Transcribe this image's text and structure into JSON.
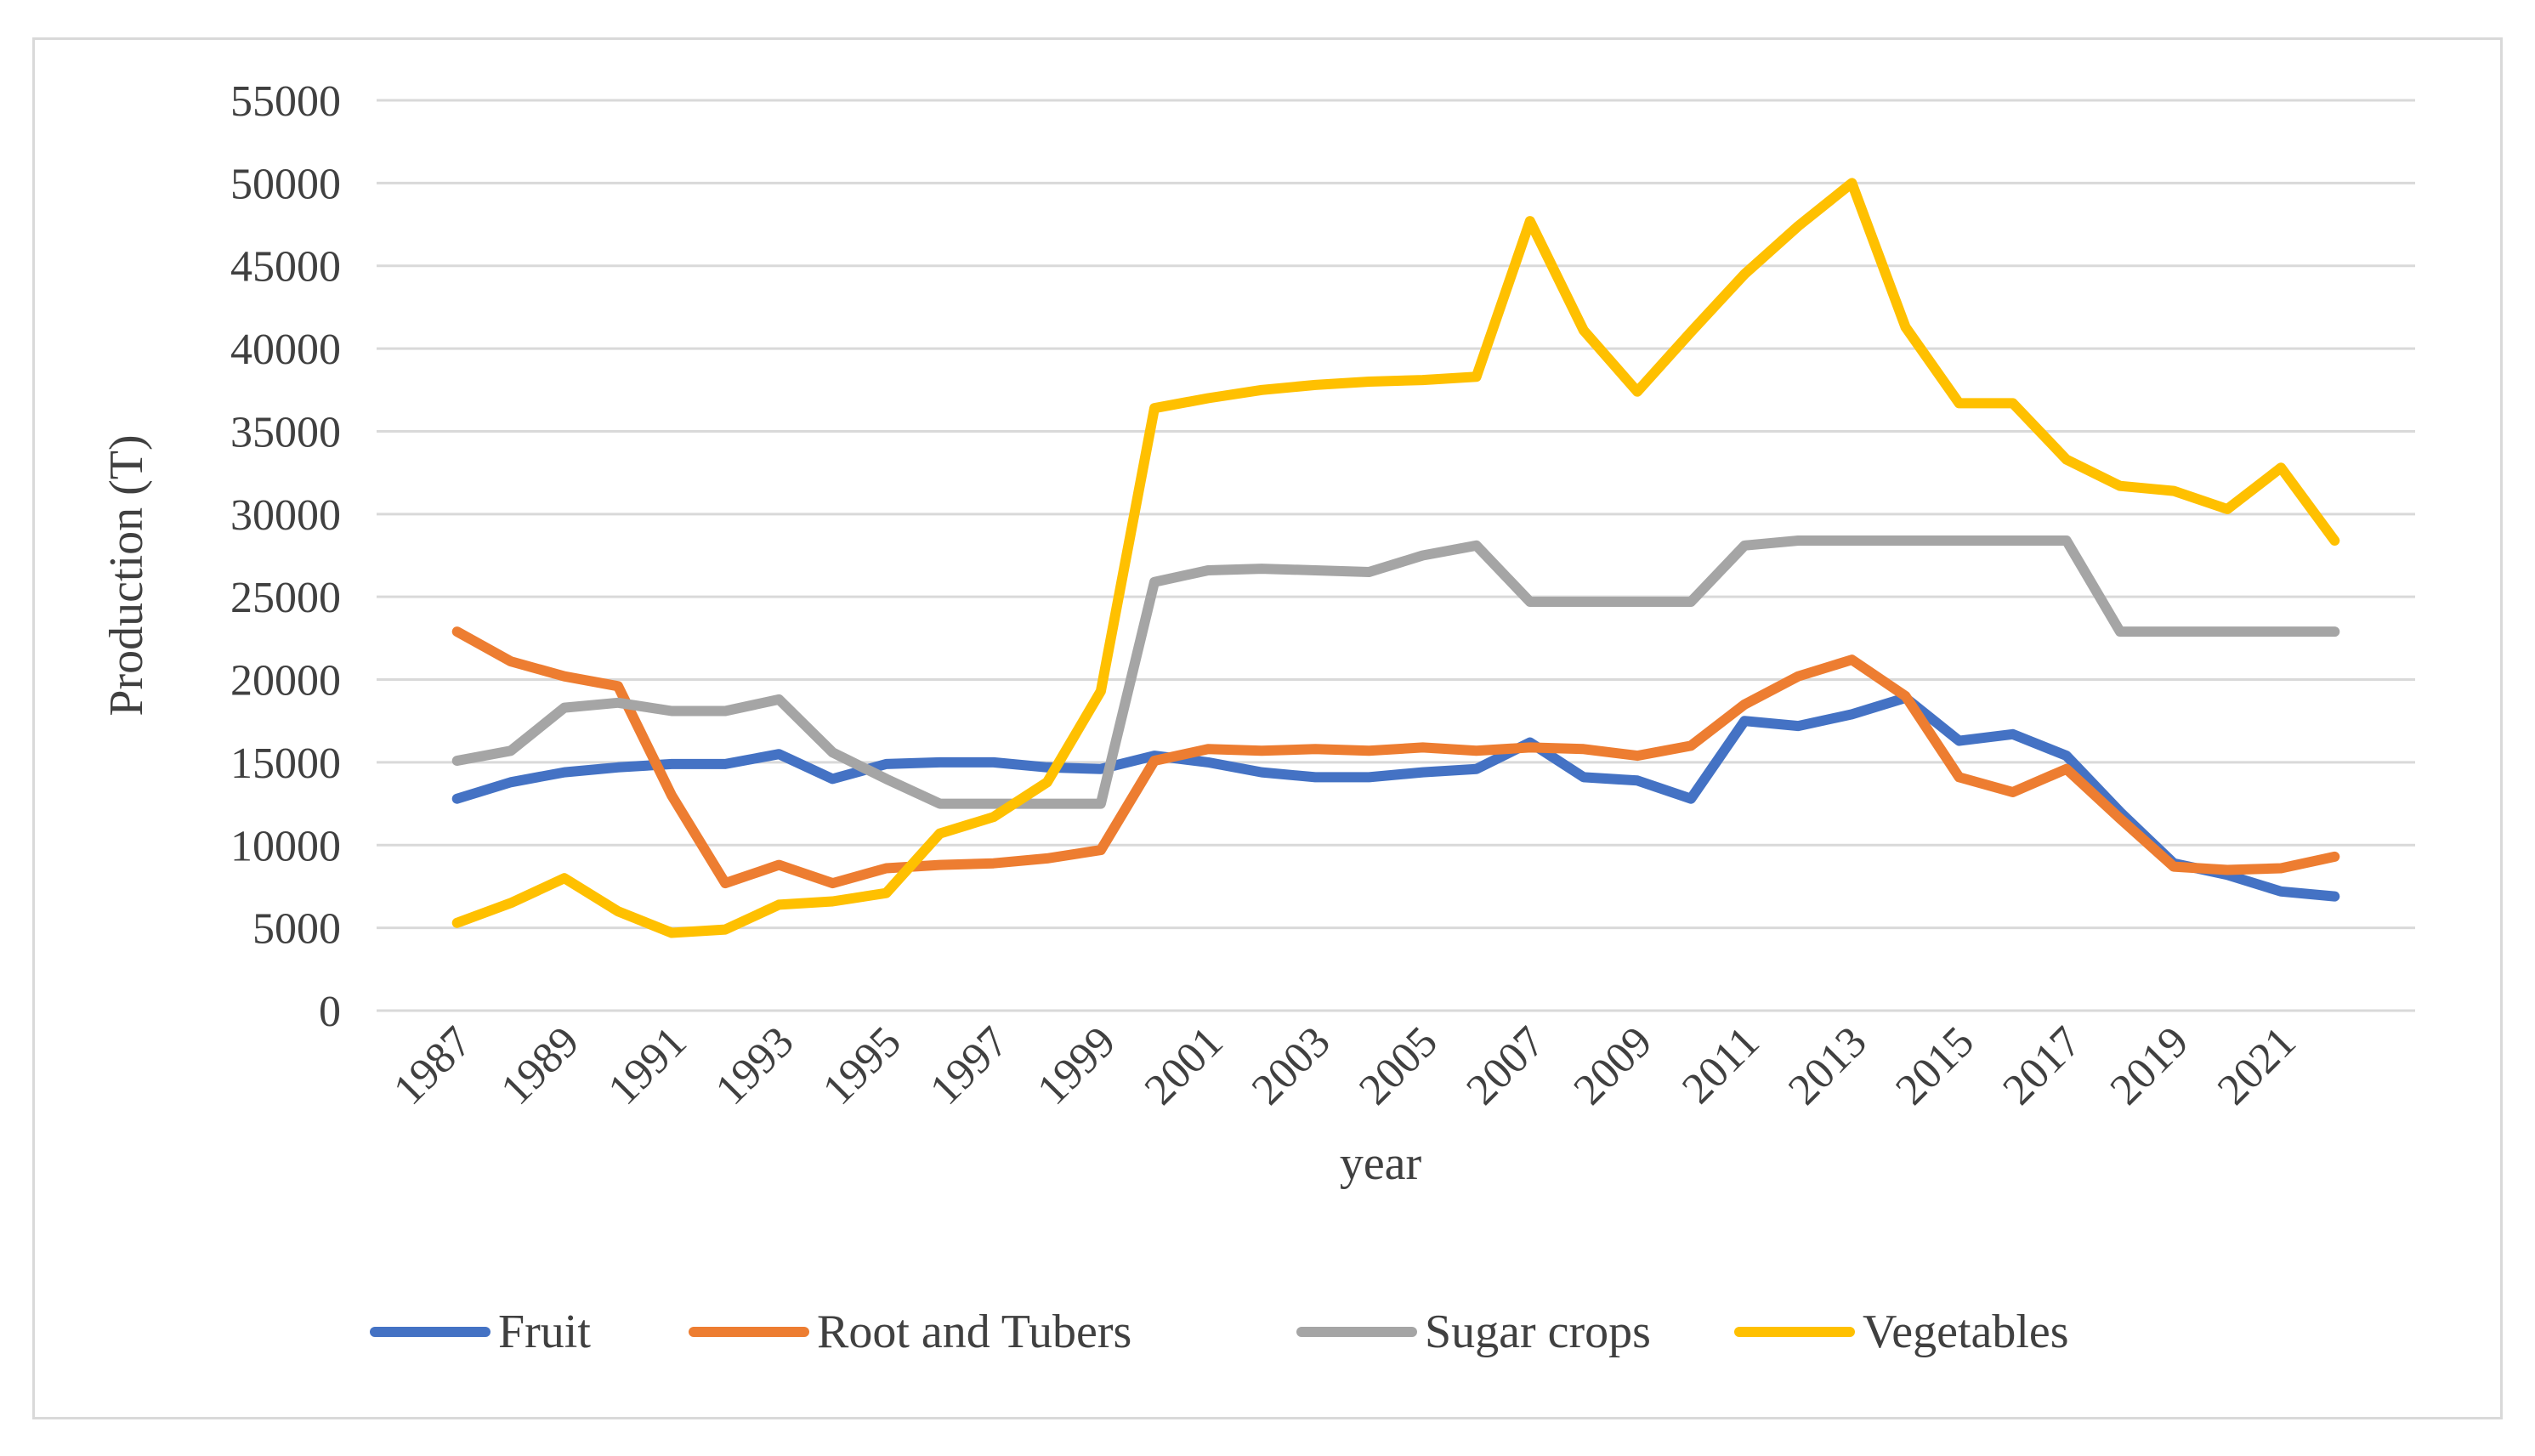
{
  "chart_data": {
    "type": "line",
    "title": "",
    "xlabel": "year",
    "ylabel": "Production (T)",
    "ylim": [
      0,
      55000
    ],
    "y_ticks": [
      "0",
      "5000",
      "10000",
      "15000",
      "20000",
      "25000",
      "30000",
      "35000",
      "40000",
      "45000",
      "50000",
      "55000"
    ],
    "x_tick_labels": [
      "1987",
      "1989",
      "1991",
      "1993",
      "1995",
      "1997",
      "1999",
      "2001",
      "2003",
      "2005",
      "2007",
      "2009",
      "2011",
      "2013",
      "2015",
      "2017",
      "2019",
      "2021"
    ],
    "legend_position": "bottom",
    "grid": true,
    "x": [
      1987,
      1988,
      1989,
      1990,
      1991,
      1992,
      1993,
      1994,
      1995,
      1996,
      1997,
      1998,
      1999,
      2000,
      2001,
      2002,
      2003,
      2004,
      2005,
      2006,
      2007,
      2008,
      2009,
      2010,
      2011,
      2012,
      2013,
      2014,
      2015,
      2016,
      2017,
      2018,
      2019,
      2020,
      2021,
      2022
    ],
    "series": [
      {
        "name": "Fruit",
        "color": "#4472c4",
        "values": [
          12800,
          13800,
          14400,
          14700,
          14900,
          14900,
          15500,
          14000,
          14900,
          15000,
          15000,
          14700,
          14600,
          15400,
          15000,
          14400,
          14100,
          14100,
          14400,
          14600,
          16200,
          14100,
          13900,
          12800,
          17500,
          17200,
          17900,
          18900,
          16300,
          16700,
          15400,
          12000,
          8900,
          8200,
          7200,
          6900
        ]
      },
      {
        "name": "Root and Tubers",
        "color": "#ed7d31",
        "values": [
          22900,
          21100,
          20200,
          19600,
          13000,
          7700,
          8800,
          7700,
          8600,
          8800,
          8900,
          9200,
          9700,
          15100,
          15800,
          15700,
          15800,
          15700,
          15900,
          15700,
          15900,
          15800,
          15400,
          16000,
          18500,
          20200,
          21200,
          19000,
          14100,
          13200,
          14600,
          11600,
          8700,
          8500,
          8600,
          9300
        ]
      },
      {
        "name": "Sugar crops",
        "color": "#a5a5a5",
        "values": [
          15100,
          15700,
          18300,
          18600,
          18100,
          18100,
          18800,
          15600,
          14000,
          12500,
          12500,
          12500,
          12500,
          25900,
          26600,
          26700,
          26600,
          26500,
          27500,
          28100,
          24700,
          24700,
          24700,
          24700,
          28100,
          28400,
          28400,
          28400,
          28400,
          28400,
          28400,
          22900,
          22900,
          22900,
          22900,
          22900
        ]
      },
      {
        "name": "Vegetables",
        "color": "#ffc000",
        "values": [
          5300,
          6500,
          8000,
          6000,
          4700,
          4900,
          6400,
          6600,
          7100,
          10700,
          11700,
          13800,
          19300,
          36400,
          37000,
          37500,
          37800,
          38000,
          38100,
          38300,
          47700,
          41100,
          37400,
          41000,
          44500,
          47400,
          50000,
          41300,
          36700,
          36700,
          33300,
          31700,
          31400,
          30300,
          32800,
          28400
        ]
      }
    ]
  }
}
